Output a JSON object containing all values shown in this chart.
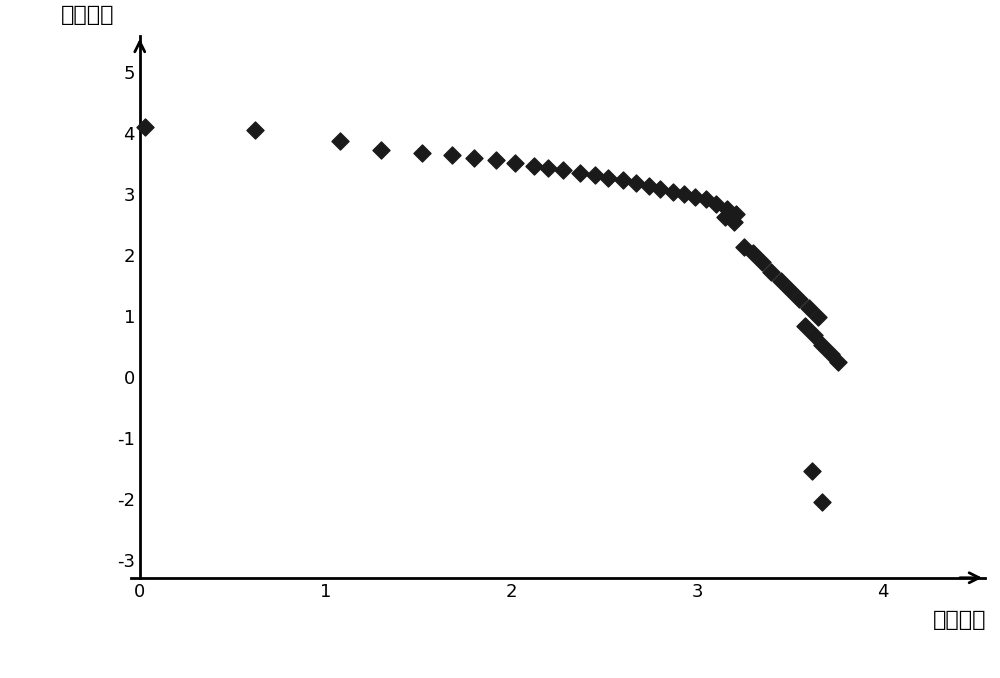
{
  "title_y": "油藏规模",
  "title_x": "油藏序号",
  "background_color": "#ffffff",
  "marker_color": "#1a1a1a",
  "xlim": [
    -0.05,
    4.55
  ],
  "ylim": [
    -3.3,
    5.6
  ],
  "xticks": [
    0,
    1,
    2,
    3,
    4
  ],
  "yticks": [
    -3,
    -2,
    -1,
    0,
    1,
    2,
    3,
    4,
    5
  ],
  "x_data": [
    0.03,
    0.62,
    1.08,
    1.3,
    1.52,
    1.68,
    1.8,
    1.92,
    2.02,
    2.12,
    2.2,
    2.28,
    2.37,
    2.45,
    2.52,
    2.6,
    2.67,
    2.74,
    2.8,
    2.87,
    2.93,
    2.99,
    3.05,
    3.1,
    3.16,
    3.21,
    3.15,
    3.2,
    3.25,
    3.3,
    3.35,
    3.4,
    3.45,
    3.5,
    3.55,
    3.6,
    3.65,
    3.58,
    3.63,
    3.67,
    3.72,
    3.76,
    3.62,
    3.67
  ],
  "y_data": [
    4.1,
    4.05,
    3.88,
    3.72,
    3.68,
    3.64,
    3.6,
    3.56,
    3.51,
    3.47,
    3.43,
    3.39,
    3.35,
    3.31,
    3.27,
    3.23,
    3.19,
    3.14,
    3.09,
    3.04,
    3.0,
    2.96,
    2.92,
    2.84,
    2.76,
    2.68,
    2.62,
    2.54,
    2.13,
    2.03,
    1.88,
    1.73,
    1.58,
    1.43,
    1.28,
    1.13,
    0.98,
    0.84,
    0.68,
    0.53,
    0.38,
    0.24,
    -1.55,
    -2.05
  ]
}
